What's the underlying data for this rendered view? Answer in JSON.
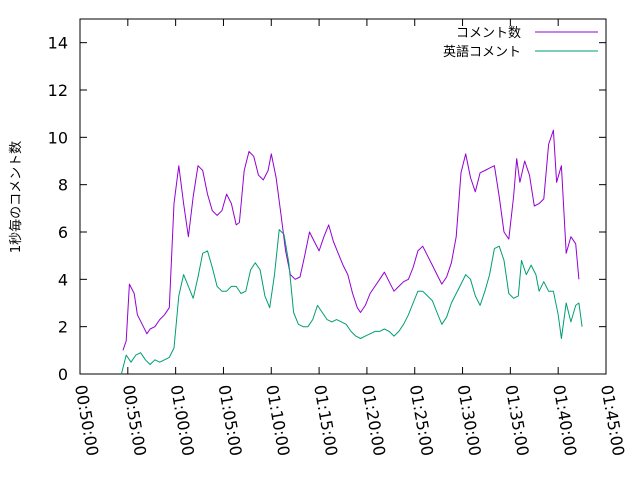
{
  "chart_data": {
    "type": "line",
    "title": "",
    "xlabel": "",
    "ylabel": "1秒毎のコメント数",
    "xlim": [
      "00:50:00",
      "01:45:00"
    ],
    "ylim": [
      0,
      15
    ],
    "xticks": [
      "00:50:00",
      "00:55:00",
      "01:00:00",
      "01:05:00",
      "01:10:00",
      "01:15:00",
      "01:20:00",
      "01:25:00",
      "01:30:00",
      "01:35:00",
      "01:40:00",
      "01:45:00"
    ],
    "yticks": [
      0,
      2,
      4,
      6,
      8,
      10,
      12,
      14
    ],
    "grid": false,
    "legend_position": "top-right",
    "series": [
      {
        "name": "コメント数",
        "color": "#9400d3",
        "points": [
          [
            "00:54:30",
            1.0
          ],
          [
            "00:54:50",
            1.4
          ],
          [
            "00:55:10",
            3.8
          ],
          [
            "00:55:40",
            3.4
          ],
          [
            "00:56:00",
            2.5
          ],
          [
            "00:56:30",
            2.1
          ],
          [
            "00:57:00",
            1.7
          ],
          [
            "00:57:20",
            1.9
          ],
          [
            "00:57:50",
            2.0
          ],
          [
            "00:58:20",
            2.3
          ],
          [
            "00:58:50",
            2.5
          ],
          [
            "00:59:20",
            2.8
          ],
          [
            "00:59:50",
            7.2
          ],
          [
            "01:00:20",
            8.8
          ],
          [
            "01:00:50",
            7.2
          ],
          [
            "01:01:20",
            5.8
          ],
          [
            "01:01:50",
            7.5
          ],
          [
            "01:02:20",
            8.8
          ],
          [
            "01:02:50",
            8.6
          ],
          [
            "01:03:20",
            7.6
          ],
          [
            "01:03:50",
            6.9
          ],
          [
            "01:04:20",
            6.7
          ],
          [
            "01:04:50",
            6.9
          ],
          [
            "01:05:20",
            7.6
          ],
          [
            "01:05:50",
            7.2
          ],
          [
            "01:06:20",
            6.3
          ],
          [
            "01:06:40",
            6.4
          ],
          [
            "01:07:10",
            8.6
          ],
          [
            "01:07:40",
            9.4
          ],
          [
            "01:08:10",
            9.2
          ],
          [
            "01:08:40",
            8.4
          ],
          [
            "01:09:10",
            8.2
          ],
          [
            "01:09:40",
            8.6
          ],
          [
            "01:10:00",
            9.3
          ],
          [
            "01:10:30",
            8.3
          ],
          [
            "01:11:00",
            6.8
          ],
          [
            "01:11:30",
            5.2
          ],
          [
            "01:12:00",
            4.2
          ],
          [
            "01:12:30",
            4.0
          ],
          [
            "01:13:00",
            4.1
          ],
          [
            "01:13:30",
            5.0
          ],
          [
            "01:14:00",
            6.0
          ],
          [
            "01:14:30",
            5.6
          ],
          [
            "01:15:00",
            5.2
          ],
          [
            "01:15:30",
            5.8
          ],
          [
            "01:16:00",
            6.3
          ],
          [
            "01:16:30",
            5.6
          ],
          [
            "01:17:00",
            5.1
          ],
          [
            "01:17:30",
            4.6
          ],
          [
            "01:18:00",
            4.2
          ],
          [
            "01:18:30",
            3.4
          ],
          [
            "01:19:00",
            2.8
          ],
          [
            "01:19:20",
            2.6
          ],
          [
            "01:19:50",
            2.9
          ],
          [
            "01:20:20",
            3.4
          ],
          [
            "01:20:50",
            3.7
          ],
          [
            "01:21:20",
            4.0
          ],
          [
            "01:21:50",
            4.3
          ],
          [
            "01:22:20",
            3.9
          ],
          [
            "01:22:50",
            3.5
          ],
          [
            "01:23:20",
            3.7
          ],
          [
            "01:23:50",
            3.9
          ],
          [
            "01:24:20",
            4.0
          ],
          [
            "01:24:50",
            4.5
          ],
          [
            "01:25:20",
            5.2
          ],
          [
            "01:25:50",
            5.4
          ],
          [
            "01:26:20",
            5.0
          ],
          [
            "01:26:50",
            4.6
          ],
          [
            "01:27:20",
            4.2
          ],
          [
            "01:27:50",
            3.8
          ],
          [
            "01:28:20",
            4.1
          ],
          [
            "01:28:50",
            4.7
          ],
          [
            "01:29:20",
            5.8
          ],
          [
            "01:29:50",
            8.5
          ],
          [
            "01:30:20",
            9.3
          ],
          [
            "01:30:50",
            8.3
          ],
          [
            "01:31:20",
            7.7
          ],
          [
            "01:31:50",
            8.5
          ],
          [
            "01:32:20",
            8.6
          ],
          [
            "01:32:50",
            8.7
          ],
          [
            "01:33:20",
            8.8
          ],
          [
            "01:33:50",
            7.5
          ],
          [
            "01:34:20",
            6.0
          ],
          [
            "01:34:50",
            5.7
          ],
          [
            "01:35:20",
            7.5
          ],
          [
            "01:35:40",
            9.1
          ],
          [
            "01:36:00",
            8.1
          ],
          [
            "01:36:30",
            9.0
          ],
          [
            "01:37:00",
            8.4
          ],
          [
            "01:37:30",
            7.1
          ],
          [
            "01:38:00",
            7.2
          ],
          [
            "01:38:30",
            7.4
          ],
          [
            "01:39:00",
            9.7
          ],
          [
            "01:39:30",
            10.3
          ],
          [
            "01:39:50",
            8.1
          ],
          [
            "01:40:20",
            8.8
          ],
          [
            "01:40:50",
            5.1
          ],
          [
            "01:41:20",
            5.8
          ],
          [
            "01:41:50",
            5.5
          ],
          [
            "01:42:10",
            4.0
          ]
        ]
      },
      {
        "name": "英語コメント",
        "color": "#009e73",
        "points": [
          [
            "00:54:20",
            0.0
          ],
          [
            "00:54:50",
            0.8
          ],
          [
            "00:55:20",
            0.5
          ],
          [
            "00:55:50",
            0.8
          ],
          [
            "00:56:20",
            0.9
          ],
          [
            "00:56:50",
            0.6
          ],
          [
            "00:57:20",
            0.4
          ],
          [
            "00:57:50",
            0.6
          ],
          [
            "00:58:20",
            0.5
          ],
          [
            "00:58:50",
            0.6
          ],
          [
            "00:59:20",
            0.7
          ],
          [
            "00:59:50",
            1.1
          ],
          [
            "01:00:20",
            3.3
          ],
          [
            "01:00:50",
            4.2
          ],
          [
            "01:01:20",
            3.7
          ],
          [
            "01:01:50",
            3.2
          ],
          [
            "01:02:20",
            4.1
          ],
          [
            "01:02:50",
            5.1
          ],
          [
            "01:03:20",
            5.2
          ],
          [
            "01:03:50",
            4.5
          ],
          [
            "01:04:20",
            3.7
          ],
          [
            "01:04:50",
            3.5
          ],
          [
            "01:05:20",
            3.5
          ],
          [
            "01:05:50",
            3.7
          ],
          [
            "01:06:20",
            3.7
          ],
          [
            "01:06:50",
            3.4
          ],
          [
            "01:07:20",
            3.5
          ],
          [
            "01:07:50",
            4.4
          ],
          [
            "01:08:20",
            4.7
          ],
          [
            "01:08:50",
            4.4
          ],
          [
            "01:09:20",
            3.3
          ],
          [
            "01:09:50",
            2.8
          ],
          [
            "01:10:20",
            4.2
          ],
          [
            "01:10:50",
            6.1
          ],
          [
            "01:11:20",
            5.9
          ],
          [
            "01:11:50",
            4.7
          ],
          [
            "01:12:20",
            2.6
          ],
          [
            "01:12:50",
            2.1
          ],
          [
            "01:13:20",
            2.0
          ],
          [
            "01:13:50",
            2.0
          ],
          [
            "01:14:20",
            2.3
          ],
          [
            "01:14:50",
            2.9
          ],
          [
            "01:15:20",
            2.6
          ],
          [
            "01:15:50",
            2.3
          ],
          [
            "01:16:20",
            2.2
          ],
          [
            "01:16:50",
            2.3
          ],
          [
            "01:17:20",
            2.2
          ],
          [
            "01:17:50",
            2.1
          ],
          [
            "01:18:20",
            1.8
          ],
          [
            "01:18:50",
            1.6
          ],
          [
            "01:19:20",
            1.5
          ],
          [
            "01:19:50",
            1.6
          ],
          [
            "01:20:20",
            1.7
          ],
          [
            "01:20:50",
            1.8
          ],
          [
            "01:21:20",
            1.8
          ],
          [
            "01:21:50",
            1.9
          ],
          [
            "01:22:20",
            1.8
          ],
          [
            "01:22:50",
            1.6
          ],
          [
            "01:23:20",
            1.8
          ],
          [
            "01:23:50",
            2.1
          ],
          [
            "01:24:20",
            2.5
          ],
          [
            "01:24:50",
            3.0
          ],
          [
            "01:25:20",
            3.5
          ],
          [
            "01:25:50",
            3.5
          ],
          [
            "01:26:20",
            3.3
          ],
          [
            "01:26:50",
            3.1
          ],
          [
            "01:27:20",
            2.6
          ],
          [
            "01:27:50",
            2.1
          ],
          [
            "01:28:20",
            2.4
          ],
          [
            "01:28:50",
            3.0
          ],
          [
            "01:29:20",
            3.4
          ],
          [
            "01:29:50",
            3.8
          ],
          [
            "01:30:20",
            4.2
          ],
          [
            "01:30:50",
            4.0
          ],
          [
            "01:31:20",
            3.3
          ],
          [
            "01:31:50",
            2.9
          ],
          [
            "01:32:20",
            3.5
          ],
          [
            "01:32:50",
            4.2
          ],
          [
            "01:33:20",
            5.3
          ],
          [
            "01:33:50",
            5.4
          ],
          [
            "01:34:20",
            4.8
          ],
          [
            "01:34:50",
            3.4
          ],
          [
            "01:35:20",
            3.2
          ],
          [
            "01:35:50",
            3.3
          ],
          [
            "01:36:10",
            4.8
          ],
          [
            "01:36:40",
            4.2
          ],
          [
            "01:37:10",
            4.6
          ],
          [
            "01:37:40",
            4.2
          ],
          [
            "01:38:00",
            3.5
          ],
          [
            "01:38:30",
            3.9
          ],
          [
            "01:39:00",
            3.5
          ],
          [
            "01:39:30",
            3.5
          ],
          [
            "01:40:00",
            2.5
          ],
          [
            "01:40:20",
            1.5
          ],
          [
            "01:40:50",
            3.0
          ],
          [
            "01:41:20",
            2.2
          ],
          [
            "01:41:50",
            2.9
          ],
          [
            "01:42:10",
            3.0
          ],
          [
            "01:42:30",
            2.0
          ]
        ]
      }
    ]
  }
}
